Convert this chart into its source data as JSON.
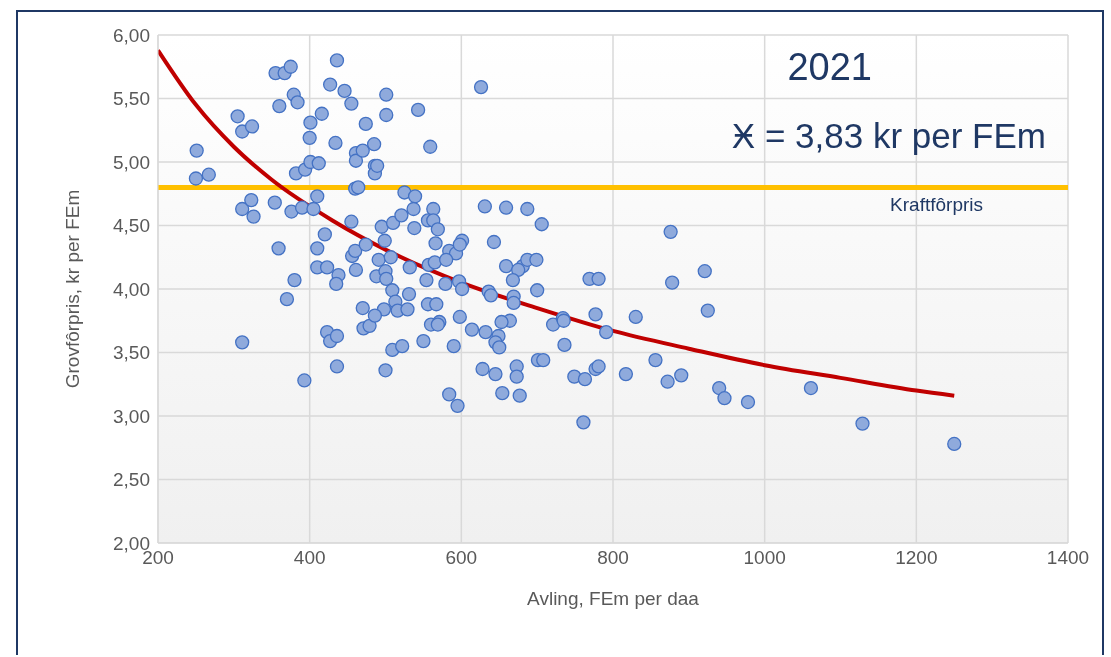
{
  "chart_data": {
    "type": "scatter",
    "xlabel": "Avling, FEm per daa",
    "ylabel": "Grovfôrpris, kr per FEm",
    "annotations": [
      "2021",
      "Ӿ = 3,83 kr per FEm"
    ],
    "xlim": [
      200,
      1400
    ],
    "xticks": [
      200,
      400,
      600,
      800,
      1000,
      1200,
      1400
    ],
    "ylim": [
      2,
      6
    ],
    "yticks": [
      {
        "value": 2,
        "label": "2,00"
      },
      {
        "value": 2.5,
        "label": "2,50"
      },
      {
        "value": 3,
        "label": "3,00"
      },
      {
        "value": 3.5,
        "label": "3,50"
      },
      {
        "value": 4,
        "label": "4,00"
      },
      {
        "value": 4.5,
        "label": "4,50"
      },
      {
        "value": 5,
        "label": "5,00"
      },
      {
        "value": 5.5,
        "label": "5,50"
      },
      {
        "value": 6,
        "label": "6,00"
      }
    ],
    "grid": true,
    "ref_lines": [
      {
        "axis": "y",
        "value": 4.8,
        "label": "Kraftfôrpris",
        "color": "#ffc000"
      }
    ],
    "series": [
      {
        "marker": "circle",
        "color": "#8faadc",
        "x": [
          251,
          250,
          267,
          305,
          311,
          324,
          311,
          323,
          326,
          311,
          355,
          367,
          375,
          360,
          379,
          384,
          354,
          359,
          376,
          382,
          394,
          390,
          380,
          370,
          393,
          401,
          400,
          401,
          412,
          416,
          405,
          410,
          420,
          410,
          410,
          423,
          436,
          427,
          446,
          455,
          434,
          461,
          461,
          474,
          470,
          455,
          460,
          464,
          486,
          486,
          489,
          438,
          435,
          423,
          427,
          436,
          436,
          456,
          460,
          461,
          474,
          470,
          471,
          479,
          501,
          501,
          485,
          495,
          510,
          499,
          491,
          488,
          500,
          501,
          509,
          513,
          516,
          498,
          486,
          509,
          522,
          500,
          521,
          525,
          539,
          537,
          538,
          507,
          532,
          531,
          529,
          543,
          559,
          563,
          556,
          563,
          569,
          566,
          557,
          565,
          554,
          556,
          567,
          560,
          571,
          569,
          550,
          590,
          584,
          595,
          584,
          593,
          601,
          598,
          580,
          579,
          597,
          601,
          598,
          626,
          631,
          659,
          687,
          706,
          643,
          659,
          681,
          675,
          687,
          699,
          636,
          639,
          668,
          669,
          669,
          700,
          614,
          632,
          664,
          653,
          649,
          645,
          650,
          628,
          645,
          673,
          673,
          654,
          677,
          701,
          708,
          721,
          734,
          735,
          736,
          769,
          781,
          777,
          791,
          749,
          763,
          777,
          781,
          761,
          817,
          830,
          856,
          872,
          890,
          876,
          878,
          921,
          925,
          940,
          947,
          978,
          1061,
          1129,
          1250
        ],
        "values": [
          5.09,
          4.87,
          4.9,
          5.36,
          5.24,
          5.28,
          4.63,
          4.7,
          4.57,
          3.58,
          5.7,
          5.7,
          5.75,
          5.44,
          5.53,
          5.47,
          4.68,
          4.32,
          4.61,
          4.91,
          4.94,
          4.64,
          4.07,
          3.92,
          3.28,
          5.31,
          5.19,
          5.0,
          4.99,
          5.38,
          4.63,
          4.73,
          4.43,
          4.32,
          4.17,
          4.17,
          5.8,
          5.61,
          5.56,
          5.46,
          5.15,
          5.07,
          5.01,
          5.3,
          5.09,
          4.53,
          4.79,
          4.8,
          4.97,
          4.91,
          4.97,
          4.11,
          4.04,
          3.66,
          3.59,
          3.63,
          3.39,
          4.26,
          4.3,
          4.15,
          4.35,
          3.85,
          3.69,
          3.71,
          5.53,
          5.37,
          5.14,
          4.49,
          4.52,
          4.38,
          4.23,
          4.1,
          4.14,
          4.08,
          3.99,
          3.9,
          3.83,
          3.84,
          3.79,
          3.52,
          3.55,
          3.36,
          4.58,
          4.76,
          4.73,
          4.63,
          4.48,
          4.25,
          4.17,
          3.96,
          3.84,
          5.41,
          5.12,
          4.63,
          4.54,
          4.54,
          4.47,
          4.36,
          4.19,
          4.21,
          4.07,
          3.88,
          3.88,
          3.72,
          3.74,
          3.72,
          3.59,
          3.55,
          3.17,
          3.08,
          4.3,
          4.28,
          4.38,
          4.35,
          4.23,
          4.04,
          4.06,
          4.0,
          3.78,
          5.59,
          4.65,
          4.64,
          4.63,
          4.51,
          4.37,
          4.18,
          4.18,
          4.15,
          4.23,
          4.23,
          3.98,
          3.95,
          4.07,
          3.94,
          3.89,
          3.99,
          3.68,
          3.66,
          3.75,
          3.74,
          3.63,
          3.58,
          3.54,
          3.37,
          3.33,
          3.39,
          3.31,
          3.18,
          3.16,
          3.44,
          3.44,
          3.72,
          3.77,
          3.75,
          3.56,
          4.08,
          4.08,
          3.8,
          3.66,
          3.31,
          3.29,
          3.37,
          3.39,
          2.95,
          3.33,
          3.78,
          3.44,
          3.27,
          3.32,
          4.45,
          4.05,
          4.14,
          3.83,
          3.22,
          3.14,
          3.11,
          3.22,
          2.94,
          2.78
        ]
      },
      {
        "type": "line",
        "color": "#c00000",
        "x": [
          200,
          250,
          300,
          350,
          430,
          500,
          600,
          700,
          800,
          900,
          1000,
          1100,
          1200,
          1250
        ],
        "values": [
          5.88,
          5.45,
          5.12,
          4.86,
          4.54,
          4.31,
          4.05,
          3.85,
          3.67,
          3.53,
          3.4,
          3.3,
          3.2,
          3.16
        ]
      }
    ]
  }
}
